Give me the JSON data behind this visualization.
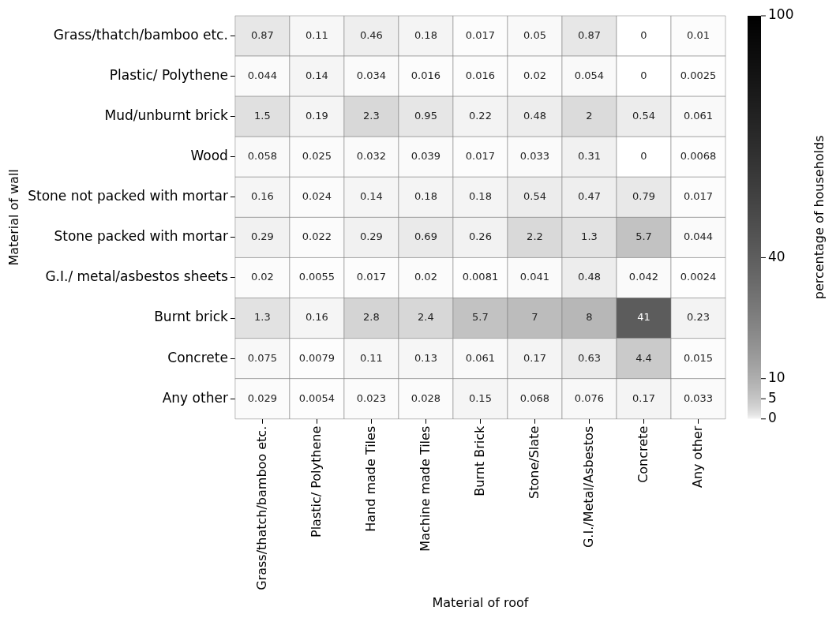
{
  "chart_data": {
    "type": "heatmap",
    "xlabel": "Material of roof",
    "ylabel": "Material of wall",
    "clabel": "percentage of households",
    "categories": [
      "Grass/thatch/bamboo etc.",
      "Plastic/ Polythene",
      "Hand made Tiles",
      "Machine made Tiles",
      "Burnt Brick",
      "Stone/Slate",
      "G.I./Metal/Asbestos",
      "Concrete",
      "Any other"
    ],
    "y_categories": [
      "Grass/thatch/bamboo etc.",
      "Plastic/ Polythene",
      "Mud/unburnt brick",
      "Wood",
      "Stone not packed with mortar",
      "Stone packed with mortar",
      "G.I./ metal/asbestos sheets",
      "Burnt brick",
      "Concrete",
      "Any other"
    ],
    "cells": [
      [
        0.87,
        0.11,
        0.46,
        0.18,
        0.017,
        0.05,
        0.87,
        0,
        0.01
      ],
      [
        0.044,
        0.14,
        0.034,
        0.016,
        0.016,
        0.02,
        0.054,
        0,
        0.0025
      ],
      [
        1.5,
        0.19,
        2.3,
        0.95,
        0.22,
        0.48,
        2,
        0.54,
        0.061
      ],
      [
        0.058,
        0.025,
        0.032,
        0.039,
        0.017,
        0.033,
        0.31,
        0,
        0.0068
      ],
      [
        0.16,
        0.024,
        0.14,
        0.18,
        0.18,
        0.54,
        0.47,
        0.79,
        0.017
      ],
      [
        0.29,
        0.022,
        0.29,
        0.69,
        0.26,
        2.2,
        1.3,
        5.7,
        0.044
      ],
      [
        0.02,
        0.0055,
        0.017,
        0.02,
        0.0081,
        0.041,
        0.48,
        0.042,
        0.0024
      ],
      [
        1.3,
        0.16,
        2.8,
        2.4,
        5.7,
        7,
        8,
        41,
        0.23
      ],
      [
        0.075,
        0.0079,
        0.11,
        0.13,
        0.061,
        0.17,
        0.63,
        4.4,
        0.015
      ],
      [
        0.029,
        0.0054,
        0.023,
        0.028,
        0.15,
        0.068,
        0.076,
        0.17,
        0.033
      ]
    ],
    "data_labels": true,
    "clim": [
      0,
      100
    ],
    "cticks": [
      0,
      5,
      10,
      40,
      100
    ]
  }
}
